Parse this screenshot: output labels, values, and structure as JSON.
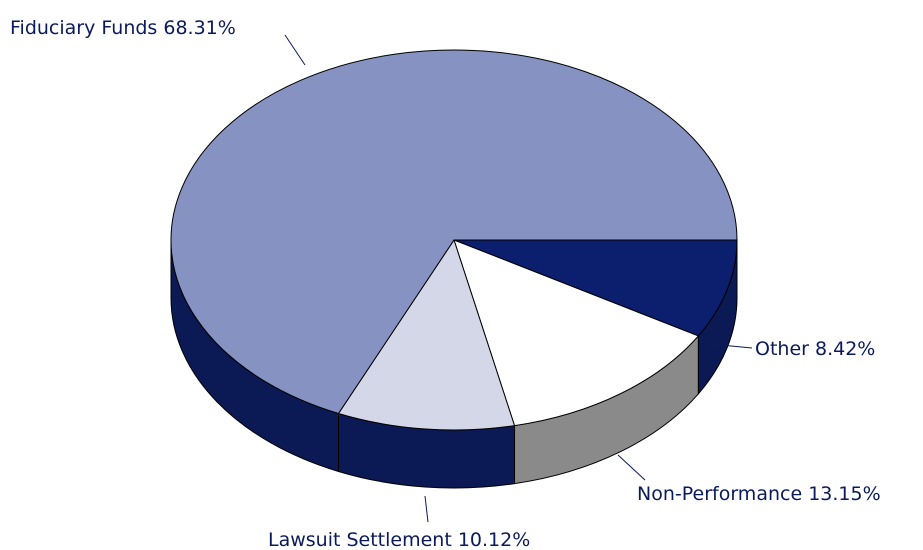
{
  "chart_data": {
    "type": "pie3d",
    "categories": [
      "Other",
      "Non-Performance",
      "Lawsuit Settlement",
      "Fiduciary Funds"
    ],
    "values": [
      8.42,
      13.15,
      10.12,
      68.31
    ],
    "value_labels": [
      "8.42%",
      "13.15%",
      "10.12%",
      "68.31%"
    ],
    "colors": [
      "#0b1f6e",
      "#ffffff",
      "#d3d7e8",
      "#8592c2"
    ],
    "side_colors": [
      "#0b1a55",
      "#8a8a8a",
      "#0b1a55",
      "#0b1a55"
    ]
  }
}
